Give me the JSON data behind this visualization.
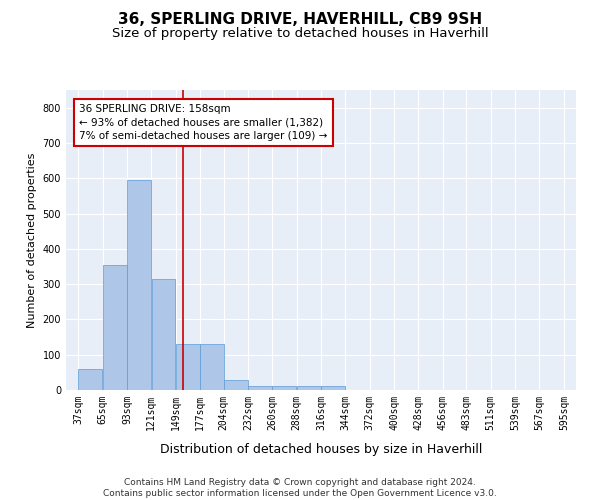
{
  "title": "36, SPERLING DRIVE, HAVERHILL, CB9 9SH",
  "subtitle": "Size of property relative to detached houses in Haverhill",
  "xlabel": "Distribution of detached houses by size in Haverhill",
  "ylabel": "Number of detached properties",
  "bar_color": "#aec6e8",
  "bar_edge_color": "#5b9bd5",
  "background_color": "#e8eef7",
  "grid_color": "#ffffff",
  "annotation_text": "36 SPERLING DRIVE: 158sqm\n← 93% of detached houses are smaller (1,382)\n7% of semi-detached houses are larger (109) →",
  "vline_x": 158,
  "vline_color": "#cc0000",
  "annotation_box_color": "#ffffff",
  "annotation_box_edge": "#cc0000",
  "footer_text": "Contains HM Land Registry data © Crown copyright and database right 2024.\nContains public sector information licensed under the Open Government Licence v3.0.",
  "bin_edges": [
    37,
    65,
    93,
    121,
    149,
    177,
    204,
    232,
    260,
    288,
    316,
    344,
    372,
    400,
    428,
    456,
    483,
    511,
    539,
    567,
    595
  ],
  "bar_heights": [
    60,
    355,
    595,
    315,
    130,
    130,
    28,
    10,
    10,
    10,
    10,
    0,
    0,
    0,
    0,
    0,
    0,
    0,
    0,
    0
  ],
  "ylim": [
    0,
    850
  ],
  "yticks": [
    0,
    100,
    200,
    300,
    400,
    500,
    600,
    700,
    800
  ],
  "title_fontsize": 11,
  "subtitle_fontsize": 9.5,
  "xlabel_fontsize": 9,
  "ylabel_fontsize": 8,
  "tick_fontsize": 7,
  "annotation_fontsize": 7.5,
  "footer_fontsize": 6.5
}
